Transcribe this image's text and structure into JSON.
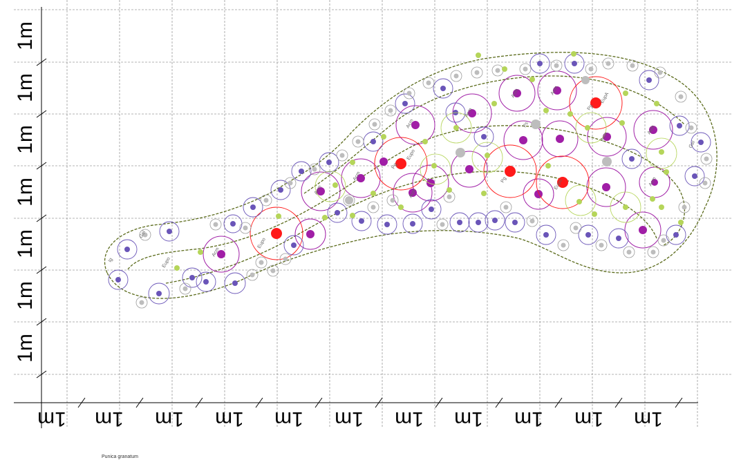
{
  "scale": {
    "label": "1m",
    "vertical_count": 7,
    "horizontal_count": 11
  },
  "legend": {
    "caption": "Punica granatum"
  },
  "plant_codes": [
    "Gel",
    "Ig",
    "Eupo",
    "Acm",
    "Pg",
    "Ps",
    "EupA"
  ],
  "colors": {
    "grid": "#9a9a9a",
    "bed_outline": "#5a6a1a",
    "small_shrub": "#6a55b8",
    "medium_shrub": "#a01ea6",
    "tree": "#ff1a1a",
    "grass": "#b5d55a",
    "stone": "#bdbdbd"
  }
}
